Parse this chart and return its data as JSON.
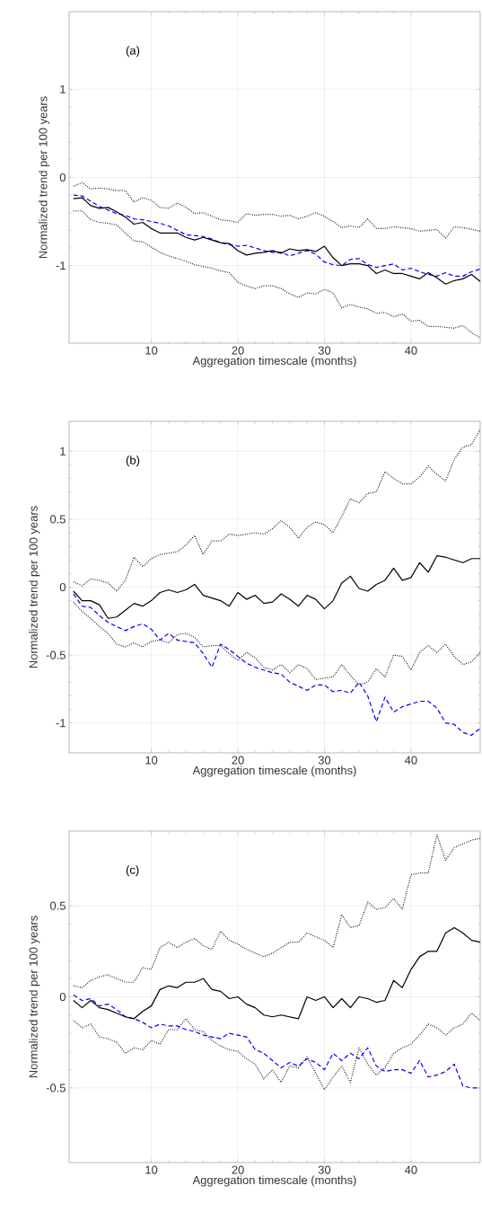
{
  "chart_data": [
    {
      "type": "line",
      "annotations": [
        "(a)"
      ],
      "xlabel": "Aggregation timescale (months)",
      "ylabel": "Normalized trend per 100 years",
      "xlim": [
        0.5,
        48
      ],
      "ylim": [
        -1.88,
        1.88
      ],
      "xticks": [
        10,
        20,
        30,
        40
      ],
      "yticks": [
        -1,
        0,
        1
      ],
      "grid": true,
      "x": [
        1,
        2,
        3,
        4,
        5,
        6,
        7,
        8,
        9,
        10,
        11,
        12,
        13,
        14,
        15,
        16,
        17,
        18,
        19,
        20,
        21,
        22,
        23,
        24,
        25,
        26,
        27,
        28,
        29,
        30,
        31,
        32,
        33,
        34,
        35,
        36,
        37,
        38,
        39,
        40,
        41,
        42,
        43,
        44,
        45,
        46,
        47,
        48
      ],
      "series": [
        {
          "color": "#000000",
          "line_style": "dotted",
          "values": [
            -0.1,
            -0.06,
            -0.13,
            -0.12,
            -0.13,
            -0.15,
            -0.15,
            -0.28,
            -0.23,
            -0.26,
            -0.34,
            -0.35,
            -0.29,
            -0.34,
            -0.41,
            -0.4,
            -0.44,
            -0.48,
            -0.49,
            -0.51,
            -0.41,
            -0.43,
            -0.42,
            -0.42,
            -0.44,
            -0.43,
            -0.47,
            -0.44,
            -0.4,
            -0.44,
            -0.5,
            -0.57,
            -0.55,
            -0.57,
            -0.47,
            -0.58,
            -0.58,
            -0.56,
            -0.57,
            -0.58,
            -0.61,
            -0.6,
            -0.59,
            -0.69,
            -0.56,
            -0.57,
            -0.59,
            -0.61
          ]
        },
        {
          "color": "#000000",
          "line_style": "dotted",
          "values": [
            -0.38,
            -0.38,
            -0.48,
            -0.51,
            -0.52,
            -0.54,
            -0.63,
            -0.72,
            -0.73,
            -0.79,
            -0.85,
            -0.89,
            -0.92,
            -0.95,
            -0.99,
            -1.01,
            -1.03,
            -1.06,
            -1.08,
            -1.19,
            -1.23,
            -1.26,
            -1.23,
            -1.23,
            -1.26,
            -1.32,
            -1.36,
            -1.31,
            -1.32,
            -1.27,
            -1.31,
            -1.48,
            -1.44,
            -1.47,
            -1.49,
            -1.54,
            -1.53,
            -1.58,
            -1.55,
            -1.63,
            -1.62,
            -1.69,
            -1.69,
            -1.7,
            -1.71,
            -1.68,
            -1.76,
            -1.82
          ]
        },
        {
          "color": "#0000ff",
          "line_style": "dashed",
          "values": [
            -0.2,
            -0.21,
            -0.27,
            -0.33,
            -0.37,
            -0.41,
            -0.43,
            -0.47,
            -0.48,
            -0.5,
            -0.52,
            -0.55,
            -0.6,
            -0.65,
            -0.66,
            -0.67,
            -0.7,
            -0.74,
            -0.76,
            -0.78,
            -0.77,
            -0.8,
            -0.83,
            -0.85,
            -0.85,
            -0.89,
            -0.86,
            -0.83,
            -0.87,
            -0.96,
            -0.99,
            -1.0,
            -0.93,
            -0.92,
            -0.99,
            -1.02,
            -1.0,
            -0.98,
            -1.05,
            -1.03,
            -1.07,
            -1.1,
            -1.12,
            -1.08,
            -1.12,
            -1.12,
            -1.07,
            -1.04
          ]
        },
        {
          "color": "#000000",
          "line_style": "solid",
          "values": [
            -0.24,
            -0.23,
            -0.32,
            -0.35,
            -0.34,
            -0.39,
            -0.45,
            -0.53,
            -0.51,
            -0.58,
            -0.63,
            -0.63,
            -0.63,
            -0.68,
            -0.71,
            -0.68,
            -0.71,
            -0.74,
            -0.75,
            -0.83,
            -0.88,
            -0.86,
            -0.85,
            -0.83,
            -0.86,
            -0.81,
            -0.83,
            -0.82,
            -0.84,
            -0.78,
            -0.91,
            -1.0,
            -0.98,
            -0.98,
            -1.0,
            -1.09,
            -1.05,
            -1.09,
            -1.09,
            -1.12,
            -1.15,
            -1.08,
            -1.14,
            -1.21,
            -1.17,
            -1.15,
            -1.1,
            -1.18
          ]
        }
      ]
    },
    {
      "type": "line",
      "annotations": [
        "(b)"
      ],
      "xlabel": "Aggregation timescale (months)",
      "ylabel": "Normalized trend per 100 years",
      "xlim": [
        0.5,
        48
      ],
      "ylim": [
        -1.22,
        1.22
      ],
      "xticks": [
        10,
        20,
        30,
        40
      ],
      "yticks": [
        -1,
        -0.5,
        0,
        0.5,
        1
      ],
      "grid": true,
      "x": [
        1,
        2,
        3,
        4,
        5,
        6,
        7,
        8,
        9,
        10,
        11,
        12,
        13,
        14,
        15,
        16,
        17,
        18,
        19,
        20,
        21,
        22,
        23,
        24,
        25,
        26,
        27,
        28,
        29,
        30,
        31,
        32,
        33,
        34,
        35,
        36,
        37,
        38,
        39,
        40,
        41,
        42,
        43,
        44,
        45,
        46,
        47,
        48
      ],
      "series": [
        {
          "color": "#000000",
          "line_style": "dotted",
          "values": [
            0.04,
            0.01,
            0.06,
            0.05,
            0.03,
            -0.03,
            0.05,
            0.22,
            0.15,
            0.21,
            0.24,
            0.25,
            0.26,
            0.31,
            0.38,
            0.24,
            0.34,
            0.34,
            0.39,
            0.38,
            0.39,
            0.4,
            0.39,
            0.43,
            0.49,
            0.44,
            0.36,
            0.44,
            0.48,
            0.46,
            0.4,
            0.52,
            0.65,
            0.62,
            0.69,
            0.7,
            0.85,
            0.8,
            0.76,
            0.76,
            0.81,
            0.89,
            0.83,
            0.78,
            0.94,
            1.03,
            1.05,
            1.16
          ]
        },
        {
          "color": "#000000",
          "line_style": "dotted",
          "values": [
            -0.11,
            -0.18,
            -0.23,
            -0.29,
            -0.34,
            -0.42,
            -0.44,
            -0.41,
            -0.44,
            -0.4,
            -0.39,
            -0.41,
            -0.35,
            -0.34,
            -0.37,
            -0.44,
            -0.43,
            -0.43,
            -0.49,
            -0.54,
            -0.48,
            -0.52,
            -0.59,
            -0.61,
            -0.57,
            -0.63,
            -0.57,
            -0.6,
            -0.68,
            -0.67,
            -0.66,
            -0.57,
            -0.65,
            -0.72,
            -0.7,
            -0.6,
            -0.66,
            -0.5,
            -0.51,
            -0.61,
            -0.48,
            -0.43,
            -0.48,
            -0.42,
            -0.51,
            -0.57,
            -0.55,
            -0.48
          ]
        },
        {
          "color": "#0000ff",
          "line_style": "dashed",
          "values": [
            -0.05,
            -0.14,
            -0.15,
            -0.21,
            -0.26,
            -0.29,
            -0.32,
            -0.29,
            -0.27,
            -0.31,
            -0.39,
            -0.34,
            -0.39,
            -0.4,
            -0.41,
            -0.49,
            -0.59,
            -0.42,
            -0.46,
            -0.51,
            -0.56,
            -0.59,
            -0.61,
            -0.63,
            -0.64,
            -0.7,
            -0.73,
            -0.76,
            -0.72,
            -0.72,
            -0.77,
            -0.76,
            -0.78,
            -0.7,
            -0.8,
            -0.99,
            -0.81,
            -0.92,
            -0.88,
            -0.86,
            -0.84,
            -0.84,
            -0.89,
            -1.0,
            -1.01,
            -1.07,
            -1.09,
            -1.04
          ]
        },
        {
          "color": "#000000",
          "line_style": "solid",
          "values": [
            -0.03,
            -0.1,
            -0.1,
            -0.13,
            -0.23,
            -0.22,
            -0.17,
            -0.12,
            -0.14,
            -0.1,
            -0.04,
            -0.02,
            -0.04,
            -0.02,
            0.02,
            -0.06,
            -0.08,
            -0.1,
            -0.14,
            -0.04,
            -0.09,
            -0.06,
            -0.12,
            -0.11,
            -0.05,
            -0.09,
            -0.14,
            -0.06,
            -0.09,
            -0.16,
            -0.1,
            0.03,
            0.08,
            -0.01,
            -0.03,
            0.02,
            0.05,
            0.14,
            0.05,
            0.07,
            0.18,
            0.11,
            0.23,
            0.22,
            0.2,
            0.18,
            0.21,
            0.21
          ]
        }
      ]
    },
    {
      "type": "line",
      "annotations": [
        "(c)"
      ],
      "xlabel": "Aggregation timescale (months)",
      "ylabel": "Normalized trend per 100 years",
      "xlim": [
        0.5,
        48
      ],
      "ylim": [
        -0.91,
        0.91
      ],
      "xticks": [
        10,
        20,
        30,
        40
      ],
      "yticks": [
        -0.5,
        0,
        0.5
      ],
      "grid": true,
      "x": [
        1,
        2,
        3,
        4,
        5,
        6,
        7,
        8,
        9,
        10,
        11,
        12,
        13,
        14,
        15,
        16,
        17,
        18,
        19,
        20,
        21,
        22,
        23,
        24,
        25,
        26,
        27,
        28,
        29,
        30,
        31,
        32,
        33,
        34,
        35,
        36,
        37,
        38,
        39,
        40,
        41,
        42,
        43,
        44,
        45,
        46,
        47,
        48
      ],
      "series": [
        {
          "color": "#000000",
          "line_style": "dotted",
          "values": [
            0.06,
            0.05,
            0.09,
            0.11,
            0.12,
            0.1,
            0.08,
            0.08,
            0.16,
            0.15,
            0.27,
            0.3,
            0.27,
            0.3,
            0.32,
            0.28,
            0.26,
            0.36,
            0.31,
            0.29,
            0.26,
            0.24,
            0.22,
            0.24,
            0.27,
            0.3,
            0.3,
            0.35,
            0.33,
            0.31,
            0.27,
            0.45,
            0.38,
            0.39,
            0.52,
            0.48,
            0.49,
            0.54,
            0.48,
            0.67,
            0.68,
            0.68,
            0.89,
            0.75,
            0.82,
            0.84,
            0.86,
            0.87
          ]
        },
        {
          "color": "#000000",
          "line_style": "dotted",
          "values": [
            -0.13,
            -0.17,
            -0.15,
            -0.22,
            -0.23,
            -0.25,
            -0.31,
            -0.28,
            -0.29,
            -0.24,
            -0.26,
            -0.18,
            -0.18,
            -0.12,
            -0.18,
            -0.19,
            -0.24,
            -0.27,
            -0.29,
            -0.3,
            -0.34,
            -0.37,
            -0.45,
            -0.4,
            -0.47,
            -0.38,
            -0.39,
            -0.33,
            -0.42,
            -0.51,
            -0.44,
            -0.38,
            -0.47,
            -0.28,
            -0.37,
            -0.43,
            -0.39,
            -0.31,
            -0.28,
            -0.26,
            -0.21,
            -0.15,
            -0.17,
            -0.21,
            -0.17,
            -0.15,
            -0.09,
            -0.13
          ]
        },
        {
          "color": "#0000ff",
          "line_style": "dashed",
          "values": [
            0.01,
            -0.02,
            -0.01,
            -0.05,
            -0.04,
            -0.07,
            -0.11,
            -0.12,
            -0.14,
            -0.17,
            -0.15,
            -0.16,
            -0.16,
            -0.18,
            -0.19,
            -0.21,
            -0.22,
            -0.23,
            -0.2,
            -0.21,
            -0.22,
            -0.29,
            -0.31,
            -0.35,
            -0.39,
            -0.36,
            -0.38,
            -0.34,
            -0.36,
            -0.4,
            -0.31,
            -0.35,
            -0.31,
            -0.34,
            -0.28,
            -0.38,
            -0.41,
            -0.4,
            -0.4,
            -0.42,
            -0.35,
            -0.44,
            -0.43,
            -0.41,
            -0.37,
            -0.49,
            -0.5,
            -0.5
          ]
        },
        {
          "color": "#000000",
          "line_style": "solid",
          "values": [
            -0.02,
            -0.06,
            -0.02,
            -0.06,
            -0.07,
            -0.09,
            -0.11,
            -0.12,
            -0.08,
            -0.05,
            0.04,
            0.06,
            0.05,
            0.08,
            0.08,
            0.1,
            0.04,
            0.03,
            -0.01,
            0,
            -0.04,
            -0.06,
            -0.1,
            -0.11,
            -0.1,
            -0.11,
            -0.12,
            0,
            -0.02,
            0,
            -0.06,
            -0.01,
            -0.06,
            0,
            -0.01,
            -0.03,
            -0.02,
            0.09,
            0.05,
            0.15,
            0.22,
            0.25,
            0.25,
            0.35,
            0.38,
            0.35,
            0.31,
            0.3
          ]
        }
      ]
    }
  ]
}
